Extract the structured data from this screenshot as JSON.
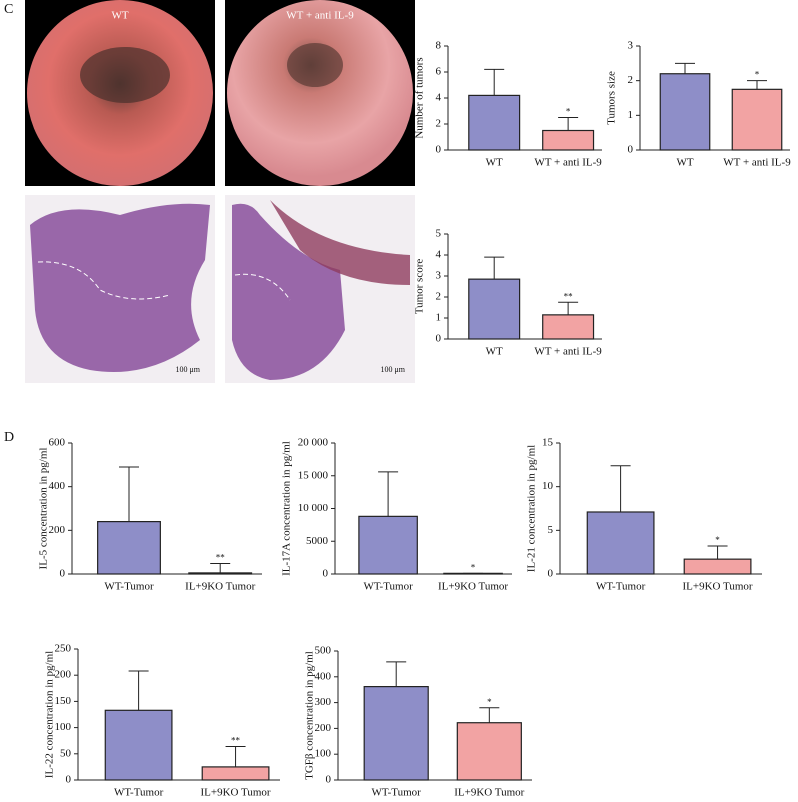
{
  "panel_labels": [
    "C",
    "D"
  ],
  "images": [
    {
      "label": "WT"
    },
    {
      "label": "WT + anti IL-9"
    }
  ],
  "scale_bars": [
    "100 μm",
    "100 μm"
  ],
  "chart_data": [
    {
      "type": "bar",
      "ylabel": "Number of tumors",
      "categories": [
        "WT",
        "WT + anti IL-9"
      ],
      "values": [
        4.2,
        1.5
      ],
      "errors": [
        2.0,
        1.0
      ],
      "colors": [
        "#8e8ec8",
        "#f2a3a3"
      ],
      "ylim": [
        0,
        8
      ],
      "yticks": [
        0,
        2,
        4,
        6,
        8
      ],
      "annotation": "*"
    },
    {
      "type": "bar",
      "ylabel": "Tumors size",
      "categories": [
        "WT",
        "WT + anti IL-9"
      ],
      "values": [
        2.2,
        1.75
      ],
      "errors": [
        0.3,
        0.25
      ],
      "colors": [
        "#8e8ec8",
        "#f2a3a3"
      ],
      "ylim": [
        0,
        3
      ],
      "yticks": [
        0,
        1,
        2,
        3
      ],
      "annotation": "*"
    },
    {
      "type": "bar",
      "ylabel": "Tumor score",
      "categories": [
        "WT",
        "WT + anti IL-9"
      ],
      "values": [
        2.85,
        1.15
      ],
      "errors": [
        1.05,
        0.6
      ],
      "colors": [
        "#8e8ec8",
        "#f2a3a3"
      ],
      "ylim": [
        0,
        5
      ],
      "yticks": [
        0,
        1,
        2,
        3,
        4,
        5
      ],
      "annotation": "**"
    },
    {
      "type": "bar",
      "ylabel": "IL-5 concentration in pg/ml",
      "categories": [
        "WT-Tumor",
        "IL+9KO Tumor"
      ],
      "values": [
        240,
        5
      ],
      "errors": [
        250,
        43
      ],
      "colors": [
        "#8e8ec8",
        "#f2a3a3"
      ],
      "ylim": [
        0,
        600
      ],
      "yticks": [
        0,
        200,
        400,
        600
      ],
      "annotation": "**"
    },
    {
      "type": "bar",
      "ylabel": "IL-17A concentration in pg/ml",
      "categories": [
        "WT-Tumor",
        "IL+9KO Tumor"
      ],
      "values": [
        8800,
        100
      ],
      "errors": [
        6800,
        0
      ],
      "colors": [
        "#8e8ec8",
        "#f2a3a3"
      ],
      "ylim": [
        0,
        20000
      ],
      "yticks": [
        0,
        5000,
        {
          "value": 10000,
          "label": "10 000"
        },
        {
          "value": 15000,
          "label": "15 000"
        },
        {
          "value": 20000,
          "label": "20 000"
        }
      ],
      "annotation": "*"
    },
    {
      "type": "bar",
      "ylabel": "IL-21 concentration in pg/ml",
      "categories": [
        "WT-Tumor",
        "IL+9KO Tumor"
      ],
      "values": [
        7.1,
        1.7
      ],
      "errors": [
        5.3,
        1.5
      ],
      "colors": [
        "#8e8ec8",
        "#f2a3a3"
      ],
      "ylim": [
        0,
        15
      ],
      "yticks": [
        0,
        5,
        10,
        15
      ],
      "annotation": "*"
    },
    {
      "type": "bar",
      "ylabel": "IL-22 concentration in pg/ml",
      "categories": [
        "WT-Tumor",
        "IL+9KO Tumor"
      ],
      "values": [
        133,
        25
      ],
      "errors": [
        75,
        39
      ],
      "colors": [
        "#8e8ec8",
        "#f2a3a3"
      ],
      "ylim": [
        0,
        250
      ],
      "yticks": [
        0,
        50,
        100,
        150,
        200,
        250
      ],
      "annotation": "**"
    },
    {
      "type": "bar",
      "ylabel": "TGFβ concentration in pg/ml",
      "categories": [
        "WT-Tumor",
        "IL+9KO Tumor"
      ],
      "values": [
        362,
        222
      ],
      "errors": [
        96,
        58
      ],
      "colors": [
        "#8e8ec8",
        "#f2a3a3"
      ],
      "ylim": [
        0,
        500
      ],
      "yticks": [
        0,
        100,
        200,
        300,
        400,
        500
      ],
      "annotation": "*"
    }
  ]
}
